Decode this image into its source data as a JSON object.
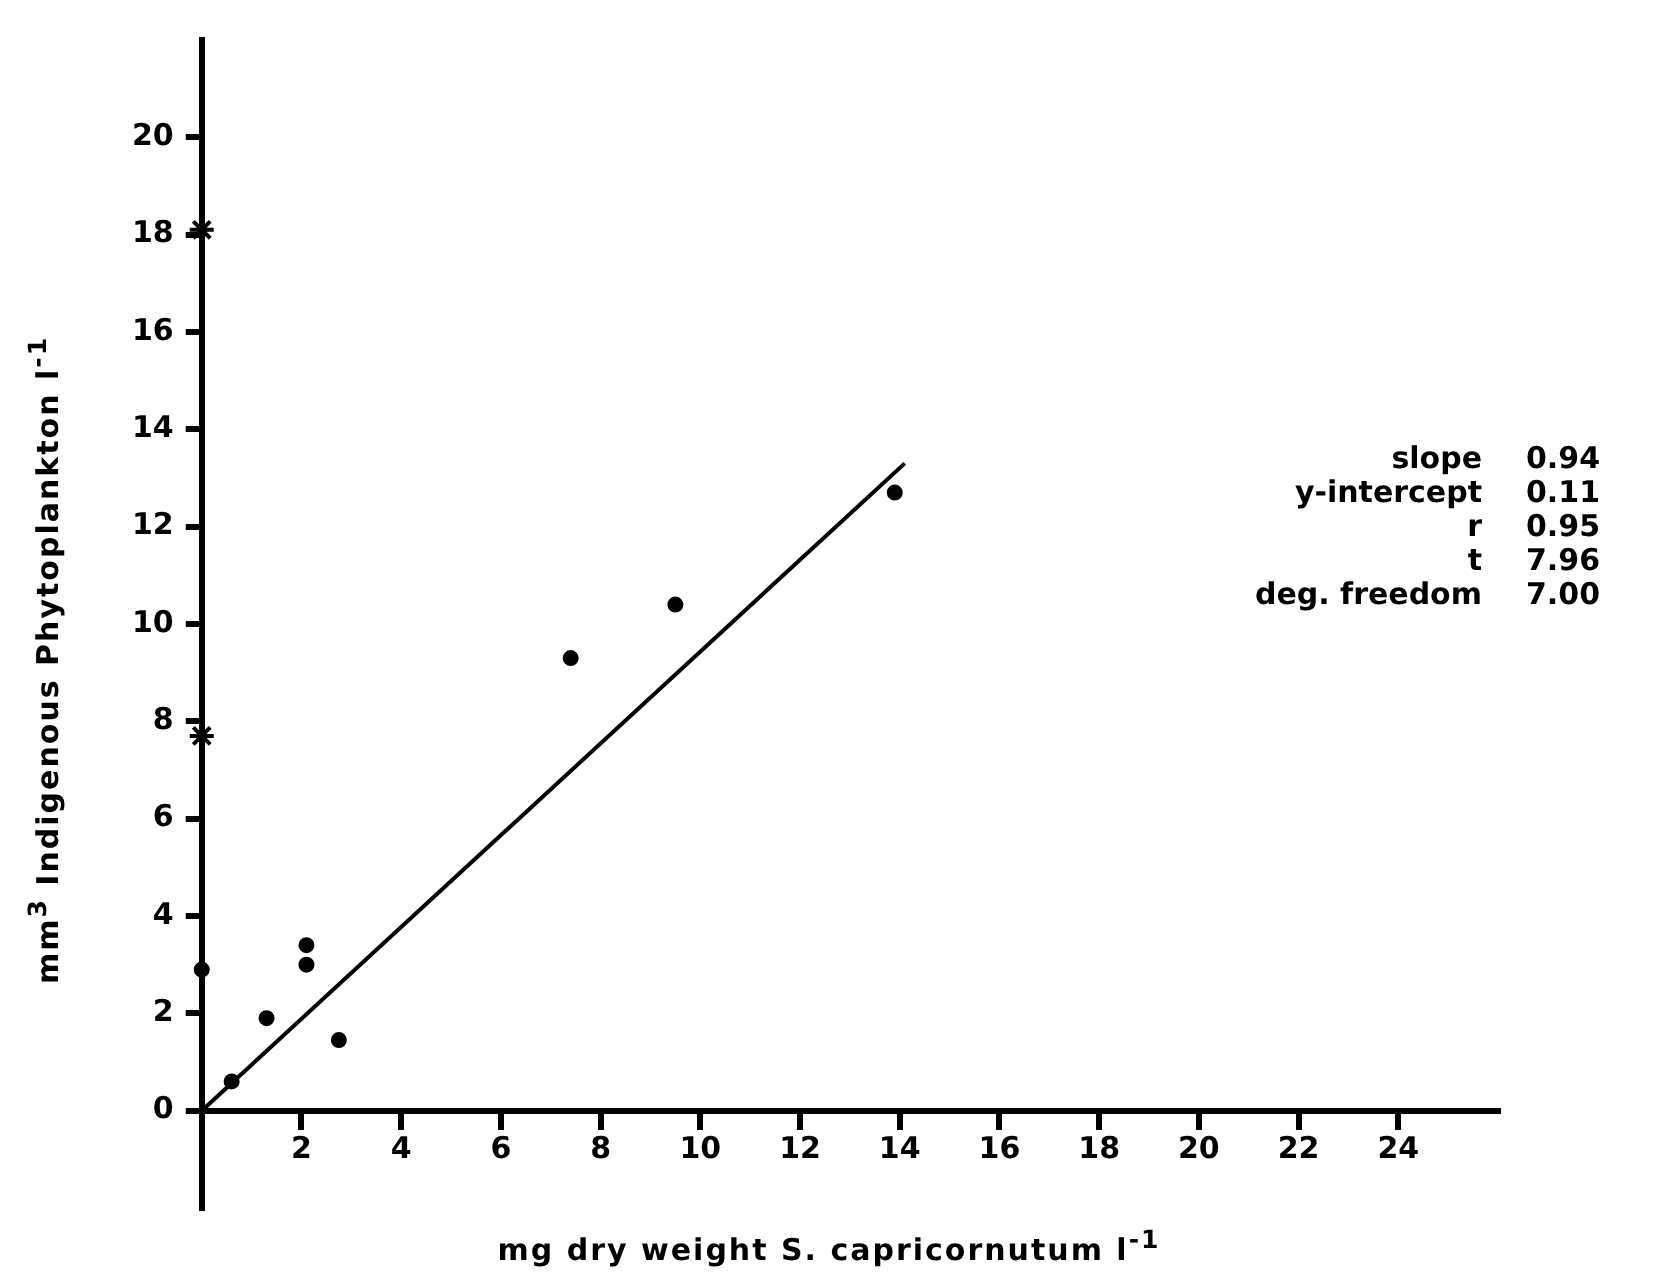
{
  "chart_data": {
    "type": "scatter",
    "xlabel": "mg dry weight S. capricornutum l$^{-1}$",
    "ylabel": "mm$^{3}$ Indigenous Phytoplankton l$^{-1}$",
    "xlim": [
      0,
      26
    ],
    "ylim": [
      -2,
      22
    ],
    "xticks": [
      2,
      4,
      6,
      8,
      10,
      12,
      14,
      16,
      18,
      20,
      22,
      24
    ],
    "yticks": [
      0,
      2,
      4,
      6,
      8,
      10,
      12,
      14,
      16,
      18,
      20
    ],
    "grid": false,
    "legend": false,
    "series": [
      {
        "color": "#000000",
        "marker": "circle",
        "x": [
          0,
          0.6,
          1.3,
          2.1,
          2.1,
          2.75,
          7.4,
          9.5,
          13.9
        ],
        "values": [
          2.9,
          0.6,
          1.9,
          3.4,
          3.0,
          1.45,
          9.3,
          10.4,
          12.7
        ]
      },
      {
        "color": "#000000",
        "marker": "cross",
        "x": [
          0,
          0
        ],
        "values": [
          18.1,
          7.7
        ]
      },
      {
        "type": "line",
        "color": "#000000",
        "marker": "none",
        "line_style": "solid",
        "x": [
          0,
          14.1
        ],
        "values": [
          0,
          13.3
        ]
      }
    ],
    "annotations": [
      "slope 0.94",
      "y-intercept 0.11",
      "r 0.95",
      "t 7.96",
      "deg. freedom 7.00"
    ]
  }
}
